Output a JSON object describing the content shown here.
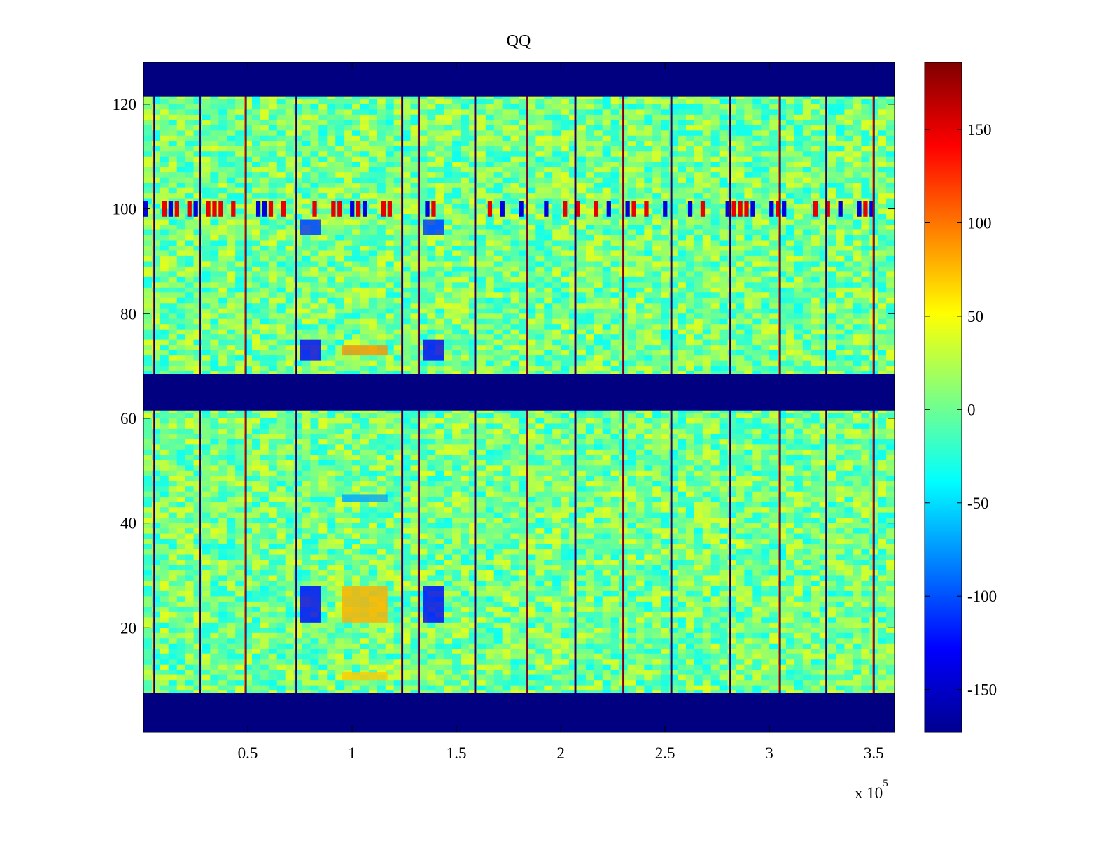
{
  "chart_data": {
    "type": "heatmap",
    "title": "QQ",
    "xlabel": "",
    "ylabel": "",
    "xlim": [
      0,
      360000
    ],
    "ylim": [
      0,
      128
    ],
    "x_exponent_label": "x 10",
    "x_exponent_power": "5",
    "xticks": [
      {
        "value": 50000,
        "label": "0.5"
      },
      {
        "value": 100000,
        "label": "1"
      },
      {
        "value": 150000,
        "label": "1.5"
      },
      {
        "value": 200000,
        "label": "2"
      },
      {
        "value": 250000,
        "label": "2.5"
      },
      {
        "value": 300000,
        "label": "3"
      },
      {
        "value": 350000,
        "label": "3.5"
      }
    ],
    "yticks": [
      {
        "value": 20,
        "label": "20"
      },
      {
        "value": 40,
        "label": "40"
      },
      {
        "value": 60,
        "label": "60"
      },
      {
        "value": 80,
        "label": "80"
      },
      {
        "value": 100,
        "label": "100"
      },
      {
        "value": 120,
        "label": "120"
      }
    ],
    "colorbar": {
      "colormap": "jet",
      "clim": [
        -173,
        186
      ],
      "ticks": [
        {
          "value": 150,
          "label": "150"
        },
        {
          "value": 100,
          "label": "100"
        },
        {
          "value": 50,
          "label": "50"
        },
        {
          "value": 0,
          "label": "0"
        },
        {
          "value": -50,
          "label": "-50"
        },
        {
          "value": -100,
          "label": "-100"
        },
        {
          "value": -150,
          "label": "-150"
        }
      ]
    },
    "background_value": 3,
    "masked_row_bands": [
      {
        "from": 0,
        "to": 7.5,
        "value": -173
      },
      {
        "from": 61.5,
        "to": 68.5,
        "value": -173
      },
      {
        "from": 121.5,
        "to": 128,
        "value": -173
      }
    ],
    "vertical_stripes_x": [
      5000,
      27000,
      49000,
      73000,
      124000,
      132000,
      159000,
      184000,
      207000,
      230000,
      253000,
      281000,
      305000,
      327000,
      350000
    ],
    "row_artifacts": [
      {
        "y": 100,
        "value": -140,
        "x_from": 0,
        "x_to": 360000,
        "pattern": "intermittent"
      }
    ],
    "block_regions": [
      {
        "x_from": 75000,
        "x_to": 85000,
        "y_from": 21,
        "y_to": 28,
        "value": -130
      },
      {
        "x_from": 134000,
        "x_to": 144000,
        "y_from": 21,
        "y_to": 28,
        "value": -130
      },
      {
        "x_from": 75000,
        "x_to": 85000,
        "y_from": 71,
        "y_to": 75,
        "value": -130
      },
      {
        "x_from": 134000,
        "x_to": 144000,
        "y_from": 71,
        "y_to": 75,
        "value": -130
      },
      {
        "x_from": 75000,
        "x_to": 85000,
        "y_from": 95,
        "y_to": 98,
        "value": -110
      },
      {
        "x_from": 134000,
        "x_to": 144000,
        "y_from": 95,
        "y_to": 98,
        "value": -110
      },
      {
        "x_from": 95000,
        "x_to": 117000,
        "y_from": 21,
        "y_to": 28,
        "value": 80
      },
      {
        "x_from": 95000,
        "x_to": 117000,
        "y_from": 72,
        "y_to": 74,
        "value": 90
      },
      {
        "x_from": 95000,
        "x_to": 117000,
        "y_from": 10,
        "y_to": 11.5,
        "value": 70
      },
      {
        "x_from": 95000,
        "x_to": 117000,
        "y_from": 44,
        "y_to": 45.5,
        "value": -70
      }
    ]
  }
}
